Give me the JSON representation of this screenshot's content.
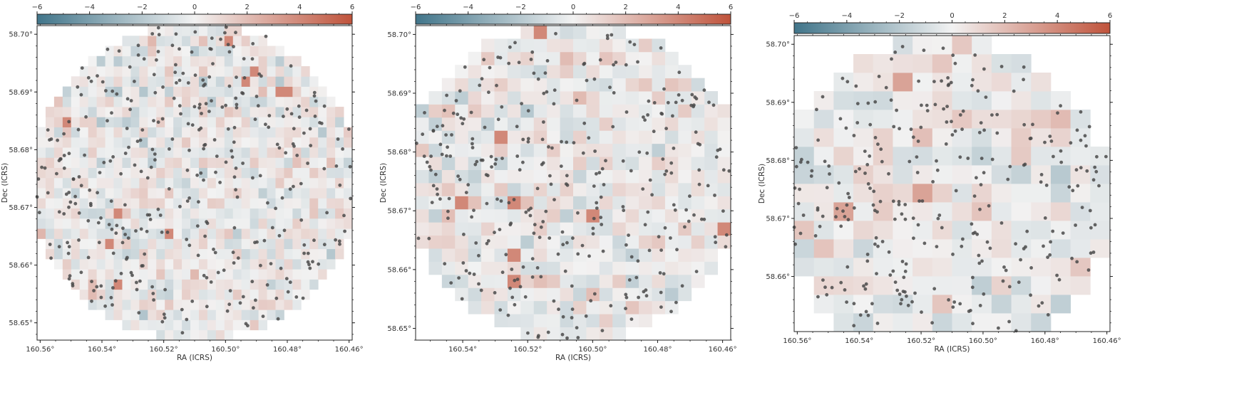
{
  "figure": {
    "panel_count": 3
  },
  "chart_data": [
    {
      "type": "heatmap",
      "panel": "left",
      "title": "",
      "xlabel": "RA (ICRS)",
      "ylabel": "Dec (ICRS)",
      "xlim": [
        160.561,
        160.459
      ],
      "ylim": [
        58.647,
        58.7015
      ],
      "xticks": [
        160.56,
        160.54,
        160.52,
        160.5,
        160.48,
        160.46
      ],
      "yticks": [
        58.65,
        58.66,
        58.67,
        58.68,
        58.69,
        58.7
      ],
      "xtick_labels": [
        "160.56°",
        "160.54°",
        "160.52°",
        "160.50°",
        "160.48°",
        "160.46°"
      ],
      "ytick_labels": [
        "58.65°",
        "58.66°",
        "58.67°",
        "58.68°",
        "58.69°",
        "58.70°"
      ],
      "grid": false,
      "colorbar": {
        "location": "top",
        "range": [
          -6,
          6
        ],
        "ticks": [
          -6,
          -4,
          -2,
          0,
          2,
          4,
          6
        ],
        "tick_labels": [
          "−6",
          "−4",
          "−2",
          "0",
          "2",
          "4",
          "6"
        ],
        "colormap": "diverging blue-white-red",
        "low_color": "#41758a",
        "mid_color": "#f2f2f2",
        "high_color": "#c0533b"
      },
      "grid_shape": [
        31,
        37
      ],
      "extent": {
        "ra": [
          160.561,
          160.459
        ],
        "dec": [
          58.647,
          58.7015
        ]
      },
      "footprint_center": {
        "ra": 160.51,
        "dec": 58.6745
      },
      "footprint_radius_deg_dec": 0.0275,
      "value_range_estimate": [
        -3,
        4
      ],
      "overlay": {
        "type": "scatter",
        "marker_color": "#4a4a4a",
        "marker_opacity": 0.85,
        "point_count_estimate": 360
      }
    },
    {
      "type": "heatmap",
      "panel": "middle",
      "title": "",
      "xlabel": "RA (ICRS)",
      "ylabel": "Dec (ICRS)",
      "xlim": [
        160.5545,
        160.4575
      ],
      "ylim": [
        58.648,
        58.7015
      ],
      "xticks": [
        160.54,
        160.52,
        160.5,
        160.48,
        160.46
      ],
      "yticks": [
        58.65,
        58.66,
        58.67,
        58.68,
        58.69,
        58.7
      ],
      "xtick_labels": [
        "160.54°",
        "160.52°",
        "160.50°",
        "160.48°",
        "160.46°"
      ],
      "ytick_labels": [
        "58.65°",
        "58.66°",
        "58.67°",
        "58.68°",
        "58.69°",
        "58.70°"
      ],
      "grid": false,
      "colorbar": {
        "location": "top",
        "range": [
          -6,
          6
        ],
        "ticks": [
          -6,
          -4,
          -2,
          0,
          2,
          4,
          6
        ],
        "tick_labels": [
          "−6",
          "−4",
          "−2",
          "0",
          "2",
          "4",
          "6"
        ],
        "colormap": "diverging blue-white-red",
        "low_color": "#41758a",
        "mid_color": "#f2f2f2",
        "high_color": "#c0533b"
      },
      "grid_shape": [
        24,
        24
      ],
      "extent": {
        "ra": [
          160.5545,
          160.4575
        ],
        "dec": [
          58.648,
          58.7015
        ]
      },
      "footprint_center": {
        "ra": 160.506,
        "dec": 58.675
      },
      "footprint_radius_deg_dec": 0.027,
      "value_range_estimate": [
        -3,
        4
      ],
      "overlay": {
        "type": "scatter",
        "marker_color": "#4a4a4a",
        "marker_opacity": 0.85,
        "point_count_estimate": 330
      }
    },
    {
      "type": "heatmap",
      "panel": "right",
      "title": "",
      "xlabel": "RA (ICRS)",
      "ylabel": "Dec (ICRS)",
      "xlim": [
        160.561,
        160.459
      ],
      "ylim": [
        58.6505,
        58.7015
      ],
      "xticks": [
        160.56,
        160.54,
        160.52,
        160.5,
        160.48,
        160.46
      ],
      "yticks": [
        58.66,
        58.67,
        58.68,
        58.69,
        58.7
      ],
      "xtick_labels": [
        "160.56°",
        "160.54°",
        "160.52°",
        "160.50°",
        "160.48°",
        "160.46°"
      ],
      "ytick_labels": [
        "58.66°",
        "58.67°",
        "58.68°",
        "58.69°",
        "58.70°"
      ],
      "grid": false,
      "colorbar": {
        "location": "top",
        "range": [
          -6,
          6
        ],
        "ticks": [
          -6,
          -4,
          -2,
          0,
          2,
          4,
          6
        ],
        "tick_labels": [
          "−6",
          "−4",
          "−2",
          "0",
          "2",
          "4",
          "6"
        ],
        "colormap": "diverging blue-white-red",
        "low_color": "#41758a",
        "mid_color": "#f2f2f2",
        "high_color": "#c0533b"
      },
      "grid_shape": [
        16,
        16
      ],
      "extent": {
        "ra": [
          160.561,
          160.459
        ],
        "dec": [
          58.6505,
          58.7015
        ]
      },
      "footprint_center": {
        "ra": 160.512,
        "dec": 58.6735
      },
      "footprint_radius_deg_dec": 0.0275,
      "value_range_estimate": [
        -3,
        3
      ],
      "overlay": {
        "type": "scatter",
        "marker_color": "#4a4a4a",
        "marker_opacity": 0.85,
        "point_count_estimate": 300
      }
    }
  ]
}
